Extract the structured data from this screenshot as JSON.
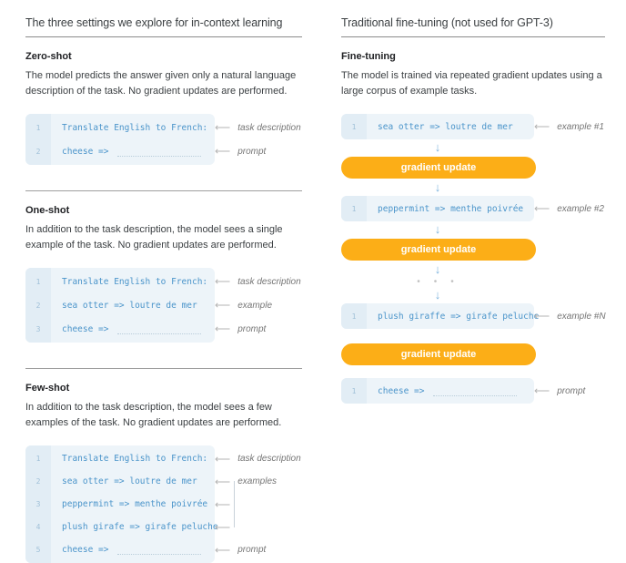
{
  "icons": {
    "left_arrow": "⟵",
    "down_arrow": "↓",
    "dots": "• • •"
  },
  "colors": {
    "accent_orange": "#FCAE17",
    "code_blue": "#4A94CA",
    "card_background": "#EDF4F9",
    "gutter_background": "#E2EDF5",
    "annotation_gray": "#757575",
    "flow_arrow_blue": "#7DB4DD"
  },
  "left": {
    "title": "The three settings we explore for in-context learning",
    "sections": [
      {
        "heading": "Zero-shot",
        "description": "The model predicts the answer given only a natural language description of the task. No gradient updates are performed.",
        "lines": [
          {
            "number": "1",
            "text": "Translate English to French:",
            "annotation": "task description"
          },
          {
            "number": "2",
            "text": "cheese =>",
            "annotation": "prompt"
          }
        ]
      },
      {
        "heading": "One-shot",
        "description": "In addition to the task description, the model sees a single example of the task. No gradient updates are performed.",
        "lines": [
          {
            "number": "1",
            "text": "Translate English to French:",
            "annotation": "task description"
          },
          {
            "number": "2",
            "text": "sea otter => loutre de mer",
            "annotation": "example"
          },
          {
            "number": "3",
            "text": "cheese =>",
            "annotation": "prompt"
          }
        ]
      },
      {
        "heading": "Few-shot",
        "description": "In addition to the task description, the model sees a few examples of the task. No gradient updates are performed.",
        "lines": [
          {
            "number": "1",
            "text": "Translate English to French:",
            "annotation": "task description"
          },
          {
            "number": "2",
            "text": "sea otter => loutre de mer",
            "annotation": "examples"
          },
          {
            "number": "3",
            "text": "peppermint => menthe poivrée",
            "annotation": ""
          },
          {
            "number": "4",
            "text": "plush girafe => girafe peluche",
            "annotation": ""
          },
          {
            "number": "5",
            "text": "cheese =>",
            "annotation": "prompt"
          }
        ]
      }
    ]
  },
  "right": {
    "title": "Traditional fine-tuning (not used for GPT-3)",
    "heading": "Fine-tuning",
    "description": "The model is trained via repeated gradient updates using a large corpus of example tasks.",
    "gradient_update_label": "gradient update",
    "examples": [
      {
        "number": "1",
        "text": "sea otter => loutre de mer",
        "annotation": "example #1"
      },
      {
        "number": "1",
        "text": "peppermint => menthe poivrée",
        "annotation": "example #2"
      },
      {
        "number": "1",
        "text": "plush giraffe => girafe peluche",
        "annotation": "example #N"
      },
      {
        "number": "1",
        "text": "cheese =>",
        "annotation": "prompt"
      }
    ]
  }
}
